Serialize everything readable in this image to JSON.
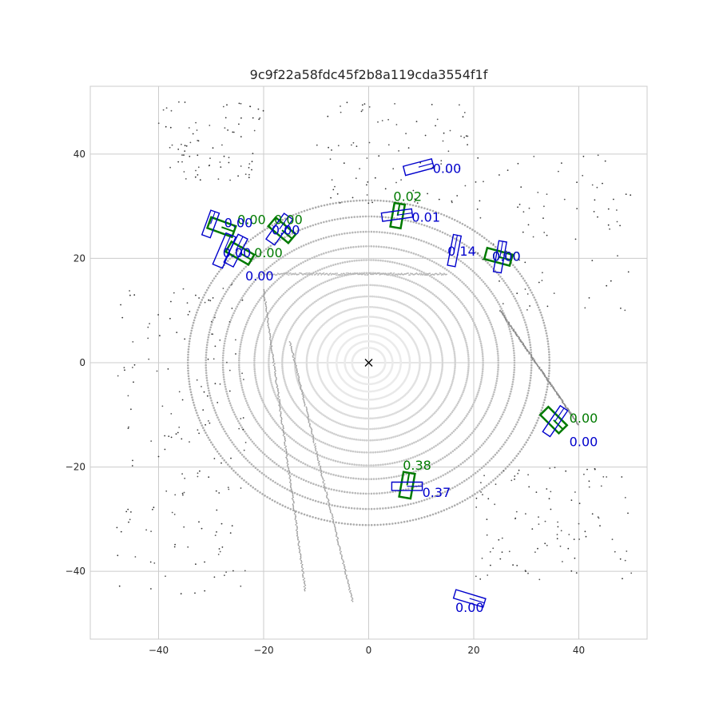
{
  "chart_data": {
    "type": "scatter",
    "title": "9c9f22a58fdc45f2b8a119cda3554f1f",
    "xlabel": "",
    "ylabel": "",
    "xlim": [
      -53,
      53
    ],
    "ylim": [
      -53,
      53
    ],
    "xticks": [
      -40,
      -20,
      0,
      20,
      40
    ],
    "yticks": [
      -40,
      -20,
      0,
      20,
      40
    ],
    "grid": true,
    "colors": {
      "prediction": "#0000cc",
      "ground_truth": "#007a00",
      "ego": "#000000",
      "lidar": "#555555"
    },
    "ego_marker": {
      "x": 0,
      "y": 0,
      "symbol": "x"
    },
    "predictions": [
      {
        "x": 9.5,
        "y": 37.5,
        "length": 5.6,
        "width": 1.8,
        "yaw_deg": 15,
        "score": "0.00",
        "label_x": 12.2,
        "label_y": 36.4
      },
      {
        "x": 5.4,
        "y": 28.3,
        "length": 5.8,
        "width": 1.6,
        "yaw_deg": 8,
        "score": "0.01",
        "label_x": 8.2,
        "label_y": 27.0
      },
      {
        "x": -30.1,
        "y": 26.6,
        "length": 5.0,
        "width": 1.7,
        "yaw_deg": 70,
        "score": "0.00",
        "label_x": -27.5,
        "label_y": 26.0
      },
      {
        "x": -27.5,
        "y": 21.5,
        "length": 6.5,
        "width": 2.0,
        "yaw_deg": 67,
        "score": "0.00",
        "label_x": -27.8,
        "label_y": 20.2
      },
      {
        "x": -25.3,
        "y": 21.5,
        "length": 6.0,
        "width": 2.0,
        "yaw_deg": 63,
        "score": "0.00",
        "label_x": -23.5,
        "label_y": 15.8
      },
      {
        "x": -17.0,
        "y": 25.6,
        "length": 6.0,
        "width": 2.0,
        "yaw_deg": 55,
        "score": "0.00",
        "label_x": -18.5,
        "label_y": 24.6
      },
      {
        "x": 16.3,
        "y": 21.5,
        "length": 6.0,
        "width": 1.5,
        "yaw_deg": 79,
        "score": "0.14",
        "label_x": 15.0,
        "label_y": 20.5
      },
      {
        "x": 25.0,
        "y": 20.3,
        "length": 6.0,
        "width": 1.5,
        "yaw_deg": 80,
        "score": "0.00",
        "label_x": 23.5,
        "label_y": 19.5
      },
      {
        "x": 35.5,
        "y": -11.2,
        "length": 6.0,
        "width": 1.7,
        "yaw_deg": 56,
        "score": "0.00",
        "label_x": 38.2,
        "label_y": -16.0
      },
      {
        "x": 7.3,
        "y": -23.7,
        "length": 5.8,
        "width": 1.6,
        "yaw_deg": 0,
        "score": "0.37",
        "label_x": 10.2,
        "label_y": -25.7
      },
      {
        "x": 19.2,
        "y": -45.2,
        "length": 5.9,
        "width": 1.7,
        "yaw_deg": -17,
        "score": "0.00",
        "label_x": 16.5,
        "label_y": -47.8
      }
    ],
    "ground_truth": [
      {
        "x": 5.5,
        "y": 28.2,
        "length": 4.6,
        "width": 2.0,
        "yaw_deg": 80,
        "score": "0.02",
        "label_x": 4.7,
        "label_y": 31.0
      },
      {
        "x": -28.0,
        "y": 26.0,
        "length": 5.0,
        "width": 2.2,
        "yaw_deg": -20,
        "score": "0.00",
        "label_x": -25.0,
        "label_y": 26.6
      },
      {
        "x": -24.5,
        "y": 21.0,
        "length": 5.0,
        "width": 2.2,
        "yaw_deg": -30,
        "score": "0.00",
        "label_x": -21.8,
        "label_y": 20.2
      },
      {
        "x": -16.5,
        "y": 25.4,
        "length": 5.0,
        "width": 2.2,
        "yaw_deg": -40,
        "score": "0.00",
        "label_x": -18.0,
        "label_y": 26.6
      },
      {
        "x": 24.7,
        "y": 20.3,
        "length": 5.0,
        "width": 2.2,
        "yaw_deg": -15,
        "score": "0.00",
        "label_x": 23.5,
        "label_y": 19.5
      },
      {
        "x": 35.2,
        "y": -11.0,
        "length": 5.0,
        "width": 2.2,
        "yaw_deg": -45,
        "score": "0.00",
        "label_x": 38.2,
        "label_y": -11.5
      },
      {
        "x": 7.3,
        "y": -23.5,
        "length": 4.8,
        "width": 2.2,
        "yaw_deg": 80,
        "score": "0.38",
        "label_x": 6.5,
        "label_y": -20.5
      }
    ]
  }
}
